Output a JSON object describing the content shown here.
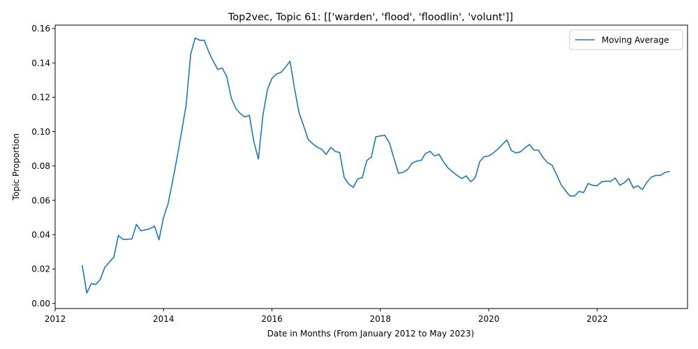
{
  "chart_data": {
    "type": "line",
    "title": "Top2vec, Topic 61: [['warden', 'flood', 'floodlin', 'volunt']]",
    "xlabel": "Date in Months (From January 2012 to May 2023)",
    "ylabel": "Topic Proportion",
    "xlim": [
      "2012-01",
      "2023-09"
    ],
    "ylim": [
      -0.003,
      0.162
    ],
    "grid": false,
    "legend_position": "top-right",
    "line_color": "#1f77b4",
    "x_ticks": [
      "2012",
      "2014",
      "2016",
      "2018",
      "2020",
      "2022"
    ],
    "y_ticks": [
      "0.00",
      "0.02",
      "0.04",
      "0.06",
      "0.08",
      "0.10",
      "0.12",
      "0.14",
      "0.16"
    ],
    "series": [
      {
        "name": "Moving Average",
        "x": [
          "2012-07",
          "2012-08",
          "2012-09",
          "2012-10",
          "2012-11",
          "2012-12",
          "2013-01",
          "2013-02",
          "2013-03",
          "2013-04",
          "2013-05",
          "2013-06",
          "2013-07",
          "2013-08",
          "2013-09",
          "2013-10",
          "2013-11",
          "2013-12",
          "2014-01",
          "2014-02",
          "2014-03",
          "2014-04",
          "2014-05",
          "2014-06",
          "2014-07",
          "2014-08",
          "2014-09",
          "2014-10",
          "2014-11",
          "2014-12",
          "2015-01",
          "2015-02",
          "2015-03",
          "2015-04",
          "2015-05",
          "2015-06",
          "2015-07",
          "2015-08",
          "2015-09",
          "2015-10",
          "2015-11",
          "2015-12",
          "2016-01",
          "2016-02",
          "2016-03",
          "2016-04",
          "2016-05",
          "2016-06",
          "2016-07",
          "2016-08",
          "2016-09",
          "2016-10",
          "2016-11",
          "2016-12",
          "2017-01",
          "2017-02",
          "2017-03",
          "2017-04",
          "2017-05",
          "2017-06",
          "2017-07",
          "2017-08",
          "2017-09",
          "2017-10",
          "2017-11",
          "2017-12",
          "2018-01",
          "2018-02",
          "2018-03",
          "2018-04",
          "2018-05",
          "2018-06",
          "2018-07",
          "2018-08",
          "2018-09",
          "2018-10",
          "2018-11",
          "2018-12",
          "2019-01",
          "2019-02",
          "2019-03",
          "2019-04",
          "2019-05",
          "2019-06",
          "2019-07",
          "2019-08",
          "2019-09",
          "2019-10",
          "2019-11",
          "2019-12",
          "2020-01",
          "2020-02",
          "2020-03",
          "2020-04",
          "2020-05",
          "2020-06",
          "2020-07",
          "2020-08",
          "2020-09",
          "2020-10",
          "2020-11",
          "2020-12",
          "2021-01",
          "2021-02",
          "2021-03",
          "2021-04",
          "2021-05",
          "2021-06",
          "2021-07",
          "2021-08",
          "2021-09",
          "2021-10",
          "2021-11",
          "2021-12",
          "2022-01",
          "2022-02",
          "2022-03",
          "2022-04",
          "2022-05",
          "2022-06",
          "2022-07",
          "2022-08",
          "2022-09",
          "2022-10",
          "2022-11",
          "2022-12",
          "2023-01",
          "2023-02",
          "2023-03",
          "2023-04",
          "2023-05"
        ],
        "y": [
          0.022,
          0.006,
          0.0115,
          0.011,
          0.014,
          0.021,
          0.024,
          0.027,
          0.0395,
          0.0373,
          0.0373,
          0.0375,
          0.046,
          0.0422,
          0.0428,
          0.0435,
          0.045,
          0.037,
          0.05,
          0.058,
          0.071,
          0.085,
          0.1,
          0.1155,
          0.145,
          0.1545,
          0.1532,
          0.1532,
          0.1465,
          0.141,
          0.1362,
          0.137,
          0.132,
          0.1195,
          0.1135,
          0.1105,
          0.1085,
          0.1095,
          0.094,
          0.084,
          0.1095,
          0.1245,
          0.131,
          0.1335,
          0.1345,
          0.1375,
          0.141,
          0.125,
          0.111,
          0.1035,
          0.0955,
          0.093,
          0.091,
          0.0897,
          0.0867,
          0.0908,
          0.0885,
          0.0878,
          0.0732,
          0.0695,
          0.0675,
          0.0725,
          0.0732,
          0.0832,
          0.0852,
          0.097,
          0.0975,
          0.0978,
          0.0935,
          0.0845,
          0.0758,
          0.0762,
          0.0778,
          0.0815,
          0.0828,
          0.0832,
          0.0873,
          0.0885,
          0.0858,
          0.0868,
          0.0823,
          0.0788,
          0.0765,
          0.0745,
          0.0727,
          0.0742,
          0.0708,
          0.0732,
          0.0825,
          0.0855,
          0.0858,
          0.0875,
          0.0898,
          0.0925,
          0.0952,
          0.089,
          0.0876,
          0.0882,
          0.0905,
          0.0925,
          0.0893,
          0.0892,
          0.085,
          0.082,
          0.0805,
          0.075,
          0.0692,
          0.0655,
          0.0625,
          0.0625,
          0.0652,
          0.0645,
          0.0698,
          0.0687,
          0.0685,
          0.0708,
          0.0712,
          0.071,
          0.073,
          0.0688,
          0.0702,
          0.0727,
          0.0672,
          0.0685,
          0.0662,
          0.0705,
          0.0735,
          0.0745,
          0.0745,
          0.0762,
          0.0768
        ]
      }
    ]
  }
}
